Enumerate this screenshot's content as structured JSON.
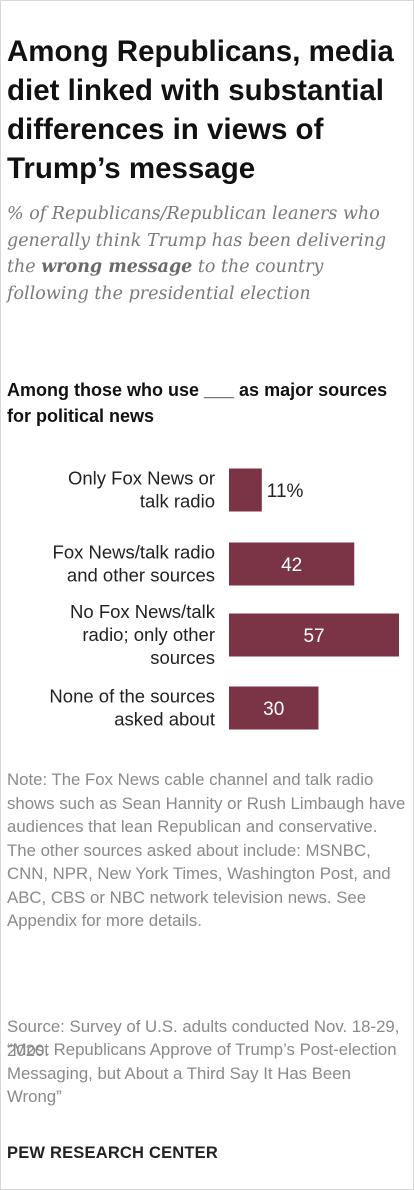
{
  "header": {
    "title": "Among Republicans, media diet linked with substantial differences in views of Trump’s message",
    "subtitle_before": "% of Republicans/Republican leaners who generally think Trump has been delivering the ",
    "subtitle_emphasis": "wrong message",
    "subtitle_after": " to the country following the presidential election"
  },
  "section_label": "Among those who use ___ as major sources for political news",
  "chart_data": {
    "type": "bar",
    "orientation": "horizontal",
    "categories": [
      "Only Fox News or talk radio",
      "Fox News/talk radio and other sources",
      "No Fox News/talk radio; only other sources",
      "None of the sources asked about"
    ],
    "category_lines": [
      [
        "Only Fox News or",
        "talk radio"
      ],
      [
        "Fox News/talk radio",
        "and other sources"
      ],
      [
        "No Fox News/talk",
        "radio; only other",
        "sources"
      ],
      [
        "None of the sources",
        "asked about"
      ]
    ],
    "values": [
      11,
      42,
      57,
      30
    ],
    "value_labels": [
      "11%",
      "42",
      "57",
      "30"
    ],
    "unit": "%",
    "bar_color": "#7b3446",
    "xlim": [
      0,
      58
    ]
  },
  "footer": {
    "note": "Note: The Fox News cable channel and talk radio shows such as Sean Hannity or Rush Limbaugh have audiences that lean Republican and conservative. The other sources asked about include: MSNBC, CNN, NPR, New York Times, Washington Post, and ABC, CBS or NBC network television news. See Appendix for more details.",
    "source": "Source: Survey of U.S. adults conducted Nov. 18-29, 2020.",
    "report": "“Most Republicans Approve of Trump’s Post-election Messaging, but About a Third Say It Has Been Wrong”",
    "brand": "PEW RESEARCH CENTER"
  }
}
